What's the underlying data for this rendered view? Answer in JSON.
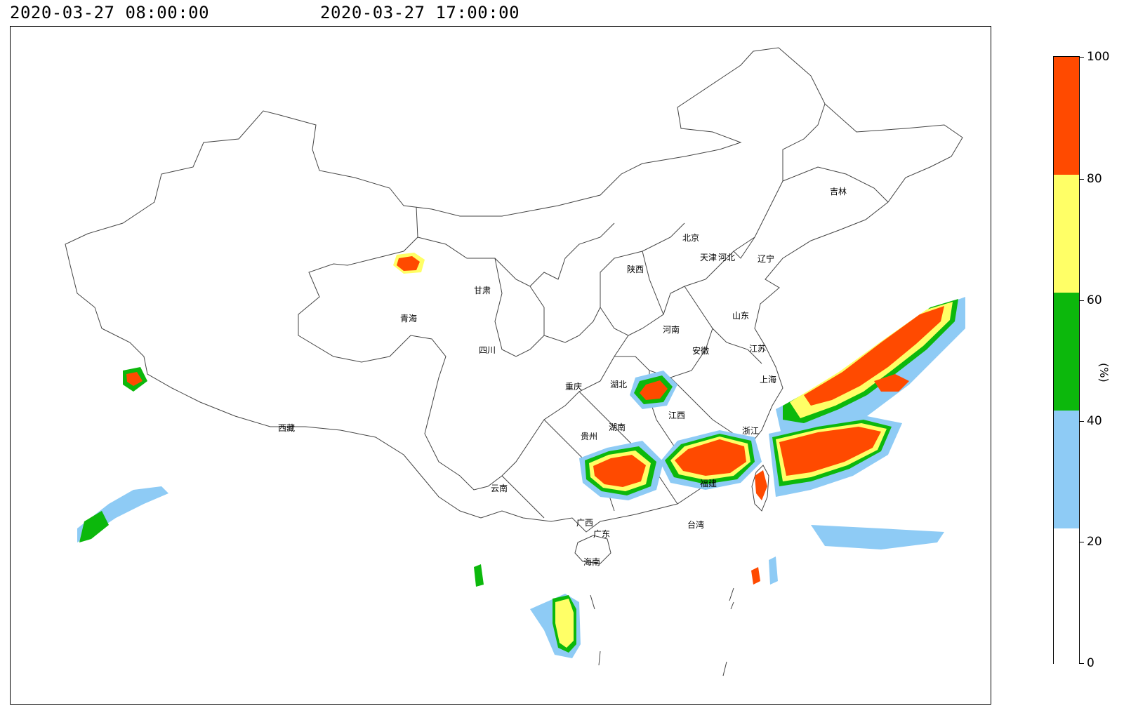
{
  "header": {
    "start_time": "2020-03-27 08:00:00",
    "end_time": "2020-03-27 17:00:00"
  },
  "legend": {
    "unit": "(%)",
    "levels": [
      {
        "from": 0,
        "to": 20,
        "color": "#ffffff"
      },
      {
        "from": 20,
        "to": 40,
        "color": "#8ecbf5"
      },
      {
        "from": 40,
        "to": 60,
        "color": "#0cb80c"
      },
      {
        "from": 60,
        "to": 80,
        "color": "#ffff66"
      },
      {
        "from": 80,
        "to": 100,
        "color": "#ff4a00"
      }
    ],
    "tick_labels": [
      "0",
      "20",
      "40",
      "60",
      "80",
      "100"
    ]
  },
  "map": {
    "provinces": [
      "吉林",
      "北京",
      "天津",
      "河北",
      "辽宁",
      "陕西",
      "甘肃",
      "青海",
      "山东",
      "河南",
      "安徽",
      "江苏",
      "四川",
      "重庆",
      "湖北",
      "上海",
      "江西",
      "浙江",
      "湖南",
      "贵州",
      "西藏",
      "云南",
      "福建",
      "台湾",
      "广西",
      "广东",
      "海南"
    ]
  }
}
